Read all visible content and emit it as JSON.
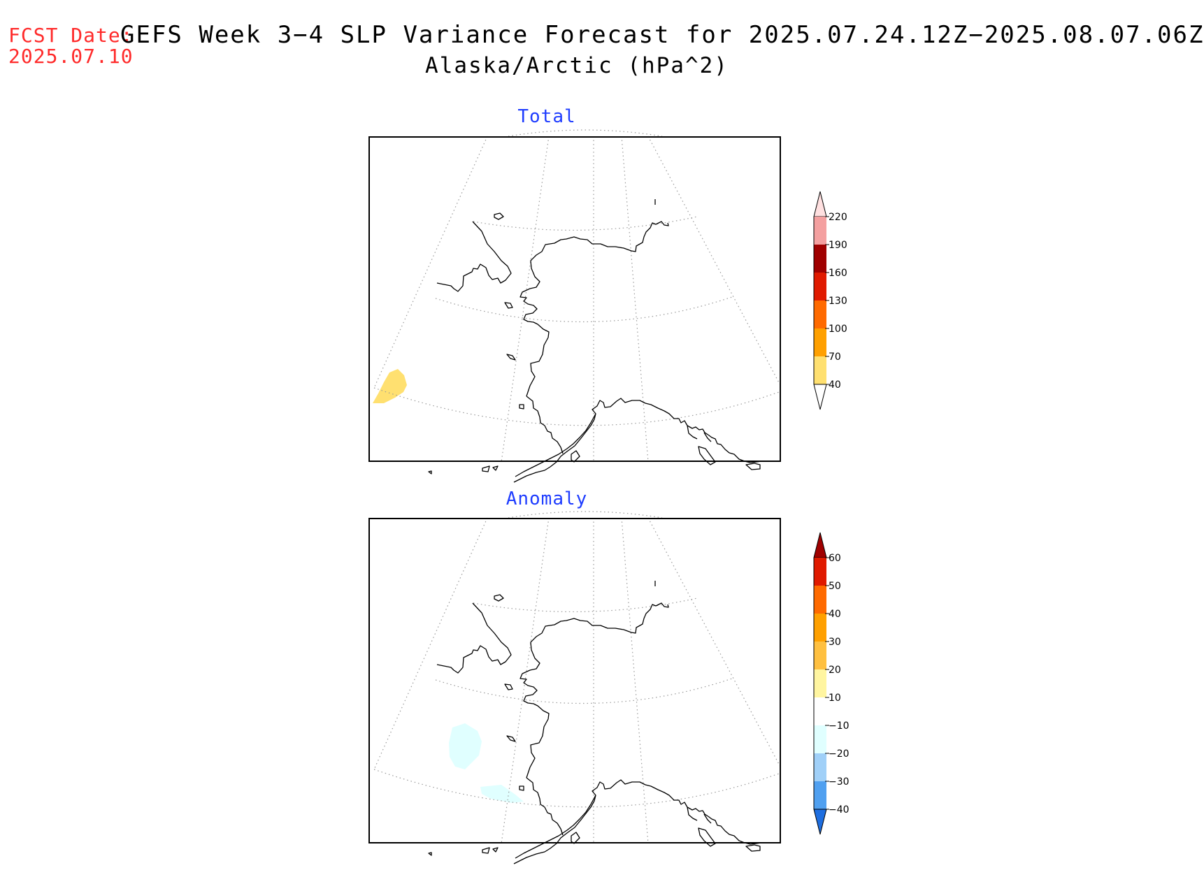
{
  "header": {
    "fcst_label": "FCST Date:",
    "fcst_date": "2025.07.10",
    "title": "GEFS Week 3−4 SLP Variance Forecast for 2025.07.24.12Z−2025.08.07.06Z",
    "subtitle": "Alaska/Arctic (hPa^2)"
  },
  "panels": [
    {
      "title": "Total",
      "colorbar": {
        "labels": [
          "220",
          "190",
          "160",
          "130",
          "100",
          "70",
          "40"
        ],
        "colors": [
          "#ffe0e0",
          "#f4a0a0",
          "#a00000",
          "#e01a00",
          "#ff6a00",
          "#ffa000",
          "#ffe070"
        ],
        "extend": "both"
      },
      "shaded_region_color": "#ffe070"
    },
    {
      "title": "Anomaly",
      "colorbar": {
        "labels": [
          "60",
          "50",
          "40",
          "30",
          "20",
          "10",
          "−10",
          "−20",
          "−30",
          "−40"
        ],
        "colors": [
          "#a00000",
          "#e01a00",
          "#ff6a00",
          "#ffa000",
          "#ffc040",
          "#fff5a0",
          "#ffffff",
          "#e0ffff",
          "#a0d0f8",
          "#50a0f0",
          "#1e6ee0"
        ],
        "extend": "both"
      },
      "shaded_region_color": "#e0ffff"
    }
  ]
}
